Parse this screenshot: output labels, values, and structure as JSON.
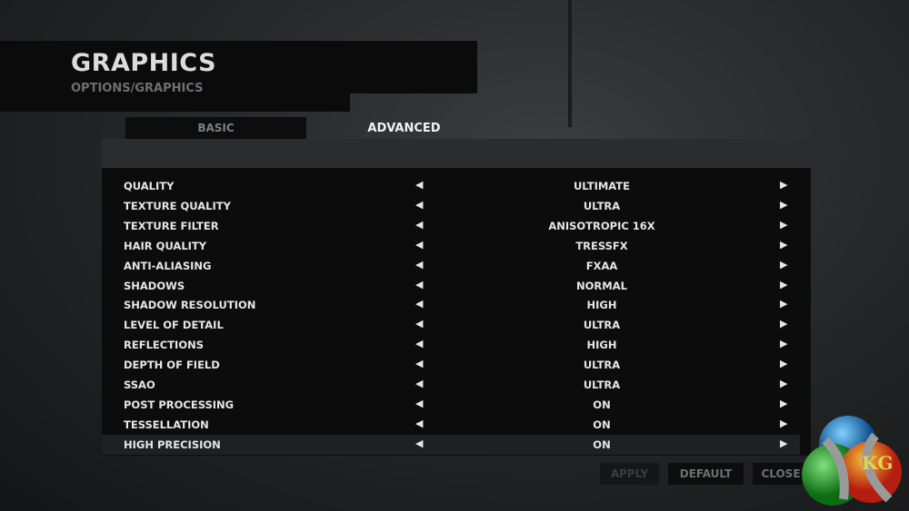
{
  "header": {
    "title": "GRAPHICS",
    "breadcrumb": "OPTIONS/GRAPHICS"
  },
  "tabs": [
    {
      "label": "BASIC",
      "active": false
    },
    {
      "label": "ADVANCED",
      "active": true
    }
  ],
  "settings": [
    {
      "label": "QUALITY",
      "value": "ULTIMATE"
    },
    {
      "label": "TEXTURE QUALITY",
      "value": "ULTRA"
    },
    {
      "label": "TEXTURE FILTER",
      "value": "ANISOTROPIC 16X"
    },
    {
      "label": "HAIR QUALITY",
      "value": "TRESSFX"
    },
    {
      "label": "ANTI-ALIASING",
      "value": "FXAA"
    },
    {
      "label": "SHADOWS",
      "value": "NORMAL"
    },
    {
      "label": "SHADOW RESOLUTION",
      "value": "HIGH"
    },
    {
      "label": "LEVEL OF DETAIL",
      "value": "ULTRA"
    },
    {
      "label": "REFLECTIONS",
      "value": "HIGH"
    },
    {
      "label": "DEPTH OF FIELD",
      "value": "ULTRA"
    },
    {
      "label": "SSAO",
      "value": "ULTRA"
    },
    {
      "label": "POST PROCESSING",
      "value": "ON"
    },
    {
      "label": "TESSELLATION",
      "value": "ON"
    },
    {
      "label": "HIGH PRECISION",
      "value": "ON",
      "selected": true
    }
  ],
  "arrows": {
    "left": "◀",
    "right": "▶"
  },
  "buttons": {
    "apply": "APPLY",
    "default": "DEFAULT",
    "close": "CLOSE"
  },
  "watermark": {
    "text": "KG"
  }
}
